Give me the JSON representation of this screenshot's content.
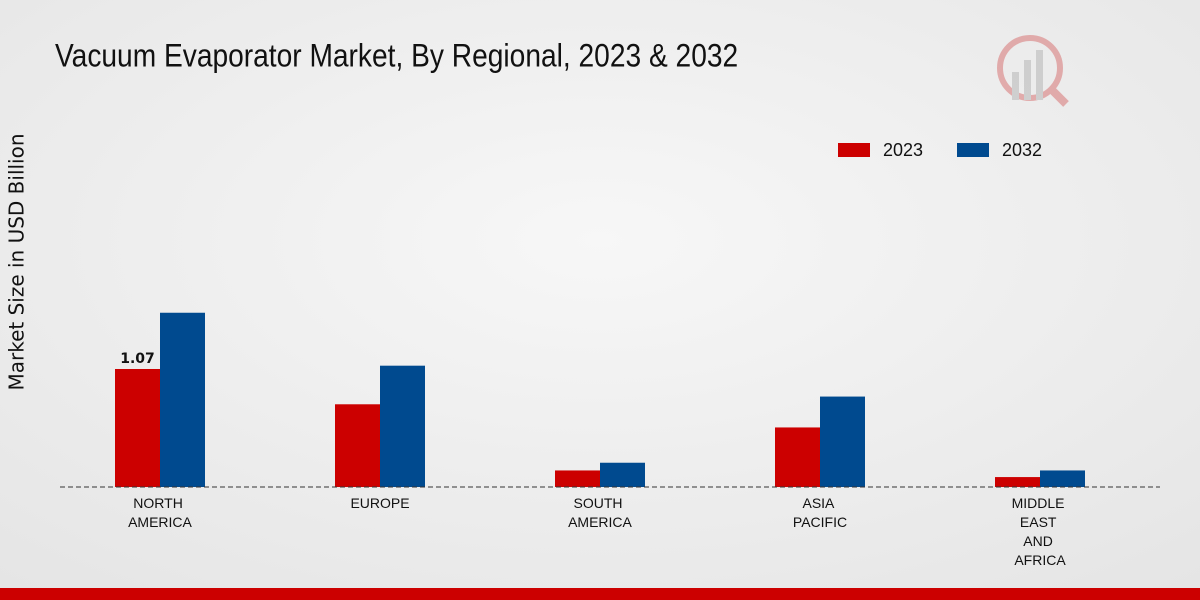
{
  "chart_data": {
    "type": "bar",
    "title": "Vacuum Evaporator Market, By Regional, 2023 & 2032",
    "y_label": "Market Size in USD Billion",
    "categories": [
      "NORTH AMERICA",
      "EUROPE",
      "SOUTH AMERICA",
      "ASIA PACIFIC",
      "MIDDLE EAST AND AFRICA"
    ],
    "series": [
      {
        "name": "2023",
        "color": "#cc0000",
        "values": [
          1.07,
          0.75,
          0.15,
          0.54,
          0.09
        ]
      },
      {
        "name": "2032",
        "color": "#004a8f",
        "values": [
          1.58,
          1.1,
          0.22,
          0.82,
          0.15
        ]
      }
    ],
    "ylim": [
      0,
      3.5
    ],
    "legend": "top-right"
  }
}
